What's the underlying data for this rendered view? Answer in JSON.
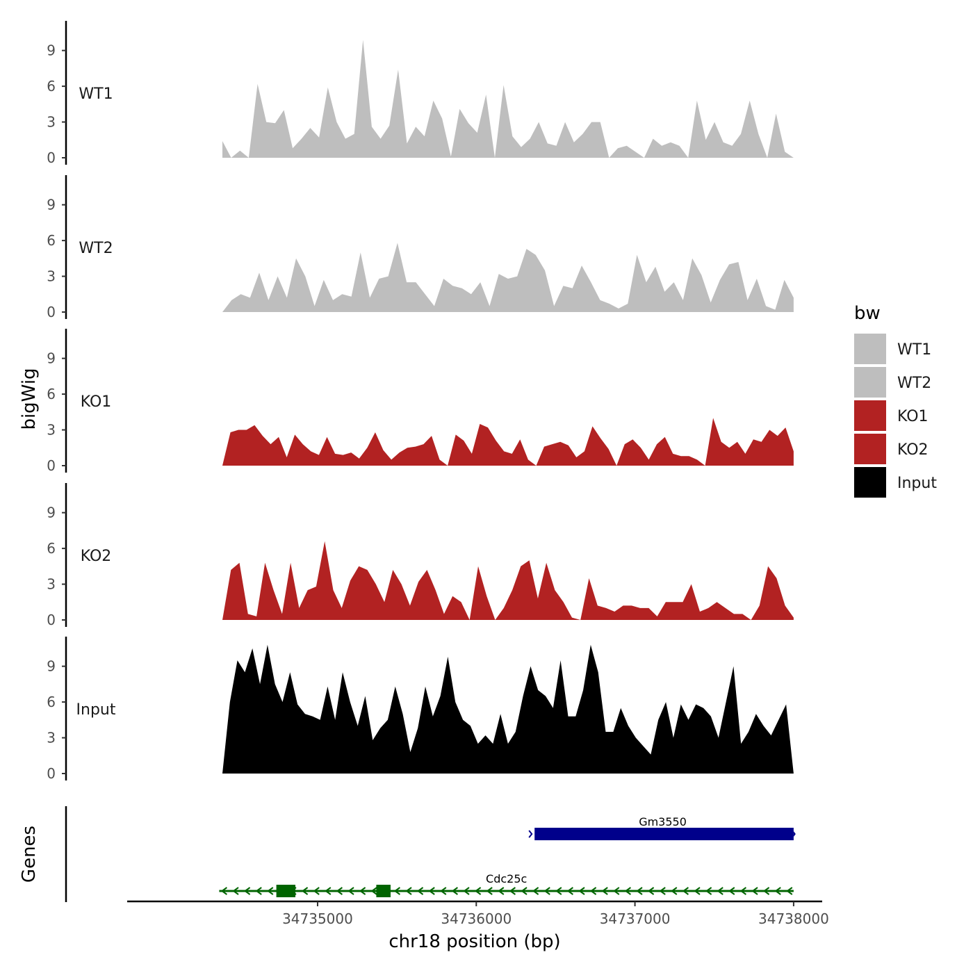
{
  "chart_data": {
    "type": "area",
    "title": "",
    "ylabel": "bigWig",
    "xlabel": "chr18 position (bp)",
    "genes_label": "Genes",
    "xlim": [
      34733800,
      34738180
    ],
    "ylim": [
      0,
      11.3
    ],
    "xticks": [
      34735000,
      34736000,
      34737000,
      34738000
    ],
    "xtick_labels": [
      "34735000",
      "34736000",
      "34737000",
      "34738000"
    ],
    "yticks": [
      0,
      3,
      6,
      9
    ],
    "ytick_labels": [
      "0",
      "3",
      "6",
      "9"
    ],
    "legend": {
      "title": "bw",
      "position": "right",
      "entries": [
        {
          "label": "WT1",
          "color": "#bebebe"
        },
        {
          "label": "WT2",
          "color": "#bebebe"
        },
        {
          "label": "KO1",
          "color": "#b22222"
        },
        {
          "label": "KO2",
          "color": "#b22222"
        },
        {
          "label": "Input",
          "color": "#000000"
        }
      ]
    },
    "x_start": 34734400,
    "x_step": 100,
    "series": [
      {
        "name": "WT1",
        "color": "#bebebe",
        "values": [
          1.4,
          0,
          0.6,
          0,
          6.2,
          3.0,
          2.9,
          4.0,
          0.8,
          1.6,
          2.5,
          1.7,
          5.9,
          3.0,
          1.6,
          2.0,
          9.9,
          2.6,
          1.6,
          2.7,
          7.4,
          1.2,
          2.6,
          1.8,
          4.8,
          3.3,
          0.1,
          4.1,
          2.9,
          2.1,
          5.3,
          0,
          6.1,
          1.8,
          0.9,
          1.6,
          3.0,
          1.2,
          1.0,
          3.0,
          1.3,
          2.0,
          3.0,
          3.0,
          0,
          0.8,
          1.0,
          0.5,
          0,
          1.6,
          1.0,
          1.3,
          1.0,
          0,
          4.8,
          1.5,
          3.0,
          1.3,
          1.0,
          2.0,
          4.8,
          2.0,
          0,
          3.7,
          0.5,
          0
        ]
      },
      {
        "name": "WT2",
        "color": "#bebebe",
        "values": [
          0,
          1.0,
          1.5,
          1.2,
          3.3,
          1.0,
          3.0,
          1.2,
          4.5,
          3.0,
          0.5,
          2.7,
          1.0,
          1.5,
          1.3,
          5.0,
          1.2,
          2.8,
          3.0,
          5.8,
          2.5,
          2.5,
          1.5,
          0.5,
          2.8,
          2.2,
          2.0,
          1.5,
          2.5,
          0.5,
          3.2,
          2.8,
          3.0,
          5.3,
          4.8,
          3.5,
          0.5,
          2.2,
          2.0,
          3.9,
          2.5,
          1.0,
          0.7,
          0.3,
          0.7,
          4.8,
          2.5,
          3.8,
          1.7,
          2.5,
          1.0,
          4.5,
          3.1,
          0.8,
          2.7,
          4.0,
          4.2,
          1.0,
          2.8,
          0.5,
          0.2,
          2.7,
          1.2
        ]
      },
      {
        "name": "KO1",
        "color": "#b22222",
        "values": [
          0,
          2.8,
          3.0,
          3.0,
          3.4,
          2.5,
          1.8,
          2.4,
          0.7,
          2.6,
          1.8,
          1.2,
          0.9,
          2.4,
          1.0,
          0.9,
          1.1,
          0.6,
          1.5,
          2.8,
          1.3,
          0.5,
          1.1,
          1.5,
          1.6,
          1.8,
          2.5,
          0.5,
          0,
          2.6,
          2.1,
          1.0,
          3.5,
          3.2,
          2.1,
          1.2,
          1.0,
          2.2,
          0.5,
          0,
          1.6,
          1.8,
          2.0,
          1.7,
          0.7,
          1.2,
          3.3,
          2.3,
          1.4,
          0,
          1.8,
          2.2,
          1.5,
          0.5,
          1.8,
          2.4,
          1.0,
          0.8,
          0.8,
          0.5,
          0,
          4.0,
          2.0,
          1.5,
          2.0,
          1.0,
          2.2,
          2.0,
          3.0,
          2.5,
          3.2,
          1.2
        ]
      },
      {
        "name": "KO2",
        "color": "#b22222",
        "values": [
          0,
          4.2,
          4.8,
          0.5,
          0.3,
          4.8,
          2.5,
          0.5,
          4.8,
          1.0,
          2.5,
          2.8,
          6.6,
          2.5,
          1.0,
          3.3,
          4.5,
          4.2,
          3.0,
          1.5,
          4.2,
          3.0,
          1.2,
          3.2,
          4.2,
          2.5,
          0.5,
          2.0,
          1.5,
          0,
          4.5,
          2.0,
          0,
          1.0,
          2.5,
          4.5,
          5.0,
          1.8,
          4.8,
          2.5,
          1.5,
          0.2,
          0,
          3.5,
          1.2,
          1.0,
          0.7,
          1.2,
          1.2,
          1.0,
          1.0,
          0.3,
          1.5,
          1.5,
          1.5,
          3.0,
          0.7,
          1.0,
          1.5,
          1.0,
          0.5,
          0.5,
          0,
          1.2,
          4.5,
          3.5,
          1.2,
          0.2
        ]
      },
      {
        "name": "Input",
        "color": "#000000",
        "values": [
          0,
          6.0,
          9.5,
          8.5,
          10.5,
          7.5,
          10.8,
          7.5,
          6.0,
          8.5,
          5.8,
          5.0,
          4.8,
          4.5,
          7.3,
          4.5,
          8.5,
          6.0,
          4.0,
          6.5,
          2.8,
          3.8,
          4.5,
          7.3,
          5.0,
          1.8,
          3.8,
          7.3,
          4.8,
          6.5,
          9.8,
          6.0,
          4.5,
          4.0,
          2.5,
          3.2,
          2.5,
          5.0,
          2.5,
          3.5,
          6.5,
          9.0,
          7.0,
          6.5,
          5.5,
          9.5,
          4.8,
          4.8,
          7.0,
          10.8,
          8.5,
          3.5,
          3.5,
          5.5,
          4.0,
          3.0,
          2.3,
          1.6,
          4.5,
          6.0,
          3.0,
          5.8,
          4.5,
          5.8,
          5.5,
          4.8,
          3.0,
          6.0,
          9.0,
          2.5,
          3.5,
          5.0,
          4.0,
          3.2,
          4.5,
          5.8,
          0
        ]
      }
    ],
    "genes": [
      {
        "name": "Gm3550",
        "color": "#00008b",
        "strand": "+",
        "start": 34736350,
        "end": 34738000
      },
      {
        "name": "Cdc25c",
        "color": "#006400",
        "strand": "-",
        "start": 34734380,
        "end": 34738000,
        "exons": [
          [
            34734740,
            34734860
          ],
          [
            34735370,
            34735460
          ]
        ]
      }
    ]
  }
}
